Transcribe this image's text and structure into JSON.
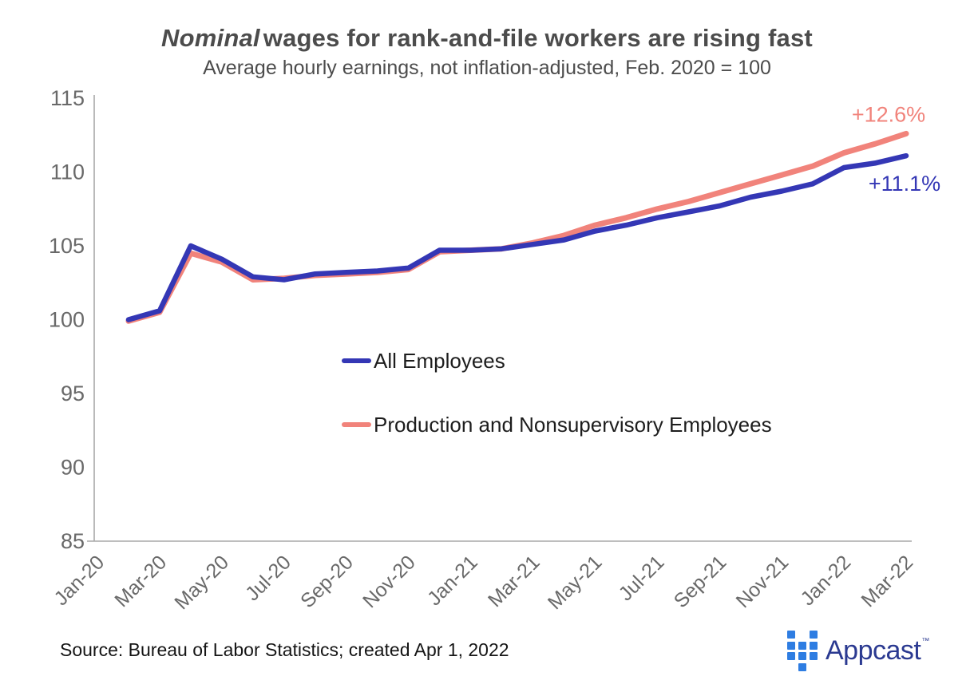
{
  "chart_data": {
    "type": "line",
    "title_italic": "Nominal",
    "title_rest": "wages for rank-and-file workers are rising fast",
    "subtitle": "Average hourly earnings, not inflation-adjusted, Feb. 2020 = 100",
    "ylim": [
      85,
      115
    ],
    "y_tick_labels": [
      "115",
      "110",
      "105",
      "100",
      "95",
      "90",
      "85"
    ],
    "x_tick_labels": [
      "Jan-20",
      "Mar-20",
      "May-20",
      "Jul-20",
      "Sep-20",
      "Nov-20",
      "Jan-21",
      "Mar-21",
      "May-21",
      "Jul-21",
      "Sep-21",
      "Nov-21",
      "Jan-22",
      "Mar-22"
    ],
    "x_months": [
      "Feb-20",
      "Mar-20",
      "Apr-20",
      "May-20",
      "Jun-20",
      "Jul-20",
      "Aug-20",
      "Sep-20",
      "Oct-20",
      "Nov-20",
      "Dec-20",
      "Jan-21",
      "Feb-21",
      "Mar-21",
      "Apr-21",
      "May-21",
      "Jun-21",
      "Jul-21",
      "Aug-21",
      "Sep-21",
      "Oct-21",
      "Nov-21",
      "Dec-21",
      "Jan-22",
      "Feb-22",
      "Mar-22"
    ],
    "grid": false,
    "legend_position": "inside-center-left",
    "series": [
      {
        "name": "All Employees",
        "color": "#3437b5",
        "annotation": "+11.1%",
        "values": [
          100.0,
          100.6,
          105.0,
          104.1,
          102.9,
          102.7,
          103.1,
          103.2,
          103.3,
          103.5,
          104.7,
          104.7,
          104.8,
          105.1,
          105.4,
          106.0,
          106.4,
          106.9,
          107.3,
          107.7,
          108.3,
          108.7,
          109.2,
          110.3,
          110.6,
          111.1
        ]
      },
      {
        "name": "Production and Nonsupervisory Employees",
        "color": "#f1837b",
        "annotation": "+12.6%",
        "values": [
          99.9,
          100.5,
          104.5,
          103.9,
          102.7,
          102.8,
          103.0,
          103.1,
          103.2,
          103.4,
          104.6,
          104.7,
          104.8,
          105.2,
          105.7,
          106.4,
          106.9,
          107.5,
          108.0,
          108.6,
          109.2,
          109.8,
          110.4,
          111.3,
          111.9,
          112.6
        ]
      }
    ],
    "axis_color": "#a9a9a9",
    "tick_label_color": "#696969"
  },
  "source_note": "Source: Bureau of Labor Statistics; created Apr 1, 2022",
  "logo": {
    "text": "Appcast",
    "tm": "™"
  }
}
